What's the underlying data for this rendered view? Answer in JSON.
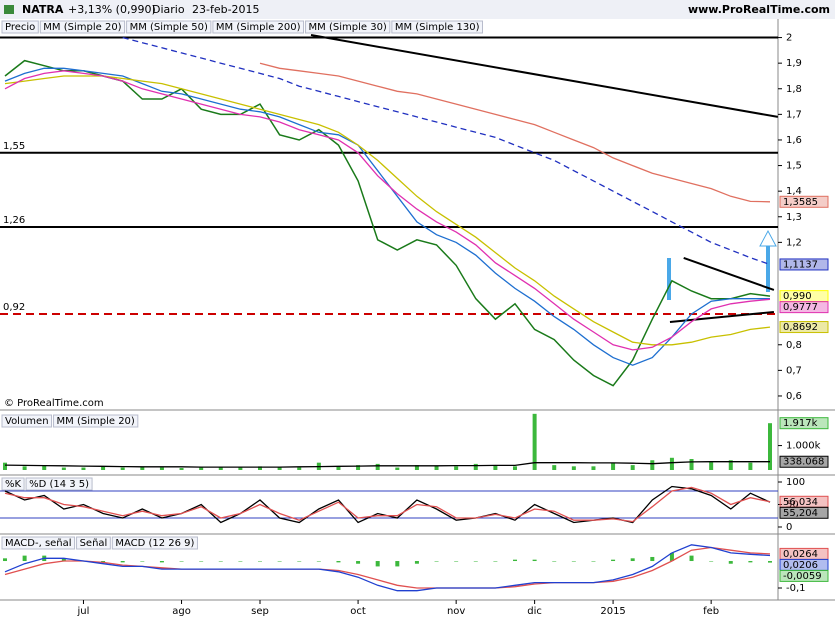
{
  "header": {
    "ticker": "NATRA",
    "change": "+3,13% (0,990)",
    "period": "Diario",
    "date": "23-feb-2015",
    "site": "www.ProRealTime.com",
    "copyright": "© ProRealTime.com"
  },
  "chart_data": [
    {
      "type": "line",
      "categories": [
        null,
        null,
        null,
        null,
        "jul",
        null,
        null,
        null,
        null,
        "ago",
        null,
        null,
        null,
        "sep",
        null,
        null,
        null,
        null,
        "oct",
        null,
        null,
        null,
        null,
        "nov",
        null,
        null,
        null,
        "dic",
        null,
        null,
        null,
        "2015",
        null,
        null,
        null,
        null,
        "feb",
        null,
        null,
        null
      ],
      "ylim": [
        0.553,
        2.01
      ],
      "yticks": [
        {
          "value": 0.6,
          "label": "0,6"
        },
        {
          "value": 0.7,
          "label": "0,7"
        },
        {
          "value": 0.8,
          "label": "0,8"
        },
        {
          "value": 1.2,
          "label": "1,2"
        },
        {
          "value": 1.3,
          "label": "1,3"
        },
        {
          "value": 1.4,
          "label": "1,4"
        },
        {
          "value": 1.5,
          "label": "1,5"
        },
        {
          "value": 1.6,
          "label": "1,6"
        },
        {
          "value": 1.7,
          "label": "1,7"
        },
        {
          "value": 1.8,
          "label": "1,8"
        },
        {
          "value": 1.9,
          "label": "1,9"
        },
        2
      ],
      "levels": [
        {
          "value": 2,
          "color": "#000000"
        },
        {
          "value": 1.55,
          "label": "1,55",
          "color": "#000000"
        },
        {
          "value": 1.26,
          "label": "1,26",
          "color": "#000000"
        },
        {
          "value": 0.92,
          "label": "0,92",
          "color": "#cc0000",
          "dashed": true
        }
      ],
      "trendlines": [
        {
          "x": [
            15.6,
            39.4
          ],
          "y": [
            2.01,
            1.69
          ]
        },
        {
          "x": [
            34.6,
            39.2
          ],
          "y": [
            1.139,
            1.014
          ]
        },
        {
          "x": [
            33.9,
            39.2
          ],
          "y": [
            0.889,
            0.928
          ]
        }
      ],
      "series": [
        {
          "name": "Precio",
          "color": "#1a7a1a",
          "box_color": "#ffff00",
          "end_label": "0,990",
          "values": [
            1.85,
            1.91,
            1.89,
            1.87,
            1.87,
            1.85,
            1.83,
            1.76,
            1.76,
            1.8,
            1.72,
            1.7,
            1.7,
            1.74,
            1.62,
            1.6,
            1.64,
            1.58,
            1.44,
            1.21,
            1.17,
            1.21,
            1.19,
            1.11,
            0.98,
            0.9,
            0.96,
            0.86,
            0.82,
            0.74,
            0.68,
            0.64,
            0.74,
            0.9,
            1.05,
            1.01,
            0.98,
            0.98,
            1.0,
            0.99
          ]
        },
        {
          "name": "MM (Simple 20)",
          "color": "#1e6fd0",
          "values": [
            1.83,
            1.86,
            1.88,
            1.88,
            1.87,
            1.86,
            1.85,
            1.82,
            1.79,
            1.78,
            1.76,
            1.74,
            1.72,
            1.71,
            1.69,
            1.66,
            1.63,
            1.62,
            1.58,
            1.48,
            1.38,
            1.28,
            1.23,
            1.2,
            1.15,
            1.08,
            1.02,
            0.97,
            0.91,
            0.86,
            0.8,
            0.75,
            0.72,
            0.75,
            0.83,
            0.92,
            0.97,
            0.98,
            0.98,
            0.98
          ]
        },
        {
          "name": "MM (Simple 50)",
          "color": "#c8c000",
          "end_label": "0,8692",
          "values": [
            1.82,
            1.83,
            1.84,
            1.85,
            1.85,
            1.85,
            1.84,
            1.83,
            1.82,
            1.8,
            1.78,
            1.76,
            1.74,
            1.72,
            1.7,
            1.68,
            1.66,
            1.63,
            1.58,
            1.52,
            1.45,
            1.38,
            1.32,
            1.27,
            1.22,
            1.16,
            1.1,
            1.05,
            0.99,
            0.94,
            0.89,
            0.85,
            0.81,
            0.8,
            0.8,
            0.81,
            0.83,
            0.84,
            0.86,
            0.8692
          ]
        },
        {
          "name": "MM (Simple 200)",
          "color": "#e07060",
          "end_label": "1,3585",
          "values": [
            null,
            null,
            null,
            null,
            null,
            null,
            null,
            null,
            null,
            null,
            null,
            null,
            null,
            1.9,
            1.88,
            1.87,
            1.86,
            1.85,
            1.83,
            1.81,
            1.79,
            1.78,
            1.76,
            1.74,
            1.72,
            1.7,
            1.68,
            1.66,
            1.63,
            1.6,
            1.57,
            1.53,
            1.5,
            1.47,
            1.45,
            1.43,
            1.41,
            1.38,
            1.36,
            1.3585
          ]
        },
        {
          "name": "MM (Simple 30)",
          "color": "#e030b0",
          "end_label": "0,9777",
          "values": [
            1.8,
            1.84,
            1.86,
            1.87,
            1.86,
            1.85,
            1.83,
            1.8,
            1.78,
            1.76,
            1.74,
            1.72,
            1.7,
            1.69,
            1.67,
            1.64,
            1.62,
            1.6,
            1.55,
            1.46,
            1.39,
            1.33,
            1.28,
            1.24,
            1.19,
            1.12,
            1.07,
            1.02,
            0.96,
            0.9,
            0.85,
            0.8,
            0.78,
            0.79,
            0.83,
            0.89,
            0.94,
            0.96,
            0.97,
            0.9777
          ]
        },
        {
          "name": "MM (Simple 130)",
          "color": "#2030c0",
          "dashed": true,
          "end_label": "1,1137",
          "values": [
            null,
            null,
            null,
            null,
            null,
            null,
            2.0,
            1.98,
            1.96,
            1.94,
            1.92,
            1.9,
            1.88,
            1.86,
            1.84,
            1.81,
            1.79,
            1.77,
            1.75,
            1.73,
            1.71,
            1.69,
            1.67,
            1.65,
            1.63,
            1.61,
            1.58,
            1.55,
            1.52,
            1.48,
            1.44,
            1.4,
            1.36,
            1.32,
            1.28,
            1.24,
            1.2,
            1.17,
            1.14,
            1.1137
          ]
        }
      ]
    },
    {
      "type": "bar",
      "ylim": [
        0,
        2334
      ],
      "yticks": [
        {
          "value": 1000,
          "label": "1.000k"
        }
      ],
      "series": [
        {
          "name": "Volumen",
          "color": "#3cb83c",
          "end_label": "1.917k",
          "values": [
            300,
            150,
            200,
            100,
            100,
            150,
            100,
            120,
            100,
            80,
            100,
            120,
            100,
            150,
            120,
            100,
            300,
            150,
            200,
            250,
            100,
            200,
            150,
            150,
            250,
            200,
            150,
            2300,
            200,
            150,
            150,
            300,
            200,
            400,
            500,
            450,
            350,
            400,
            300,
            1917
          ]
        },
        {
          "name": "MM (Simple 20)",
          "type": "line",
          "color": "#000000",
          "end_label": "338.068",
          "values": [
            200,
            190,
            180,
            170,
            160,
            150,
            140,
            130,
            130,
            130,
            120,
            120,
            120,
            120,
            120,
            130,
            140,
            150,
            160,
            170,
            170,
            170,
            170,
            180,
            180,
            190,
            190,
            300,
            300,
            300,
            290,
            290,
            280,
            260,
            300,
            330,
            340,
            340,
            340,
            338.068
          ]
        }
      ]
    },
    {
      "type": "line",
      "ylim": [
        -6.7,
        108.9
      ],
      "yticks": [
        0,
        50,
        100
      ],
      "levels": [
        {
          "value": 80,
          "color": "#3040c0"
        },
        {
          "value": 20,
          "color": "#3040c0"
        }
      ],
      "series": [
        {
          "name": "%K",
          "color": "#000000",
          "end_label": "55,204",
          "values": [
            80,
            60,
            70,
            40,
            50,
            30,
            20,
            40,
            20,
            30,
            50,
            10,
            30,
            60,
            20,
            10,
            40,
            60,
            10,
            30,
            20,
            60,
            40,
            15,
            20,
            30,
            15,
            50,
            30,
            10,
            15,
            20,
            10,
            60,
            90,
            85,
            70,
            40,
            75,
            55.204
          ]
        },
        {
          "name": "%D (14 3 5)",
          "color": "#e05050",
          "end_label": "56,034",
          "values": [
            75,
            65,
            65,
            50,
            45,
            35,
            25,
            35,
            25,
            30,
            45,
            20,
            30,
            50,
            30,
            15,
            35,
            55,
            20,
            25,
            25,
            50,
            45,
            20,
            20,
            28,
            20,
            40,
            35,
            15,
            15,
            18,
            12,
            45,
            80,
            88,
            75,
            50,
            65,
            56.034
          ]
        }
      ]
    },
    {
      "type": "bar",
      "ylim": [
        -0.137,
        0.089
      ],
      "yticks": [
        {
          "value": -0.1,
          "label": "-0,1"
        }
      ],
      "series": [
        {
          "name": "MACD-, señal",
          "color": "#3cb83c",
          "end_label": "-0,0059",
          "values": [
            0.01,
            0.02,
            0.02,
            0.01,
            0.0,
            -0.005,
            -0.005,
            0.0,
            -0.005,
            0.0,
            0,
            0,
            0,
            0,
            0,
            0,
            0,
            -0.005,
            -0.01,
            -0.02,
            -0.02,
            -0.01,
            0,
            0,
            0,
            0,
            0.005,
            0.005,
            0,
            0,
            0,
            0.005,
            0.01,
            0.015,
            0.03,
            0.02,
            0.0,
            -0.01,
            -0.005,
            -0.0059
          ]
        },
        {
          "name": "Señal",
          "type": "line",
          "color": "#e05050",
          "end_label": "0,0264",
          "values": [
            -0.05,
            -0.03,
            -0.01,
            0.0,
            0.0,
            -0.005,
            -0.015,
            -0.02,
            -0.025,
            -0.03,
            -0.03,
            -0.03,
            -0.03,
            -0.03,
            -0.03,
            -0.03,
            -0.03,
            -0.035,
            -0.05,
            -0.07,
            -0.09,
            -0.1,
            -0.1,
            -0.1,
            -0.1,
            -0.1,
            -0.095,
            -0.085,
            -0.08,
            -0.08,
            -0.08,
            -0.075,
            -0.06,
            -0.035,
            0.0,
            0.04,
            0.05,
            0.04,
            0.03,
            0.0264
          ]
        },
        {
          "name": "MACD (12 26 9)",
          "type": "line",
          "color": "#2040d0",
          "end_label": "0,0206",
          "values": [
            -0.04,
            -0.01,
            0.01,
            0.01,
            0.0,
            -0.01,
            -0.02,
            -0.02,
            -0.03,
            -0.03,
            -0.03,
            -0.03,
            -0.03,
            -0.03,
            -0.03,
            -0.03,
            -0.03,
            -0.04,
            -0.06,
            -0.09,
            -0.11,
            -0.11,
            -0.1,
            -0.1,
            -0.1,
            -0.1,
            -0.09,
            -0.08,
            -0.08,
            -0.08,
            -0.08,
            -0.07,
            -0.05,
            -0.02,
            0.03,
            0.06,
            0.05,
            0.03,
            0.025,
            0.0206
          ]
        }
      ]
    }
  ]
}
